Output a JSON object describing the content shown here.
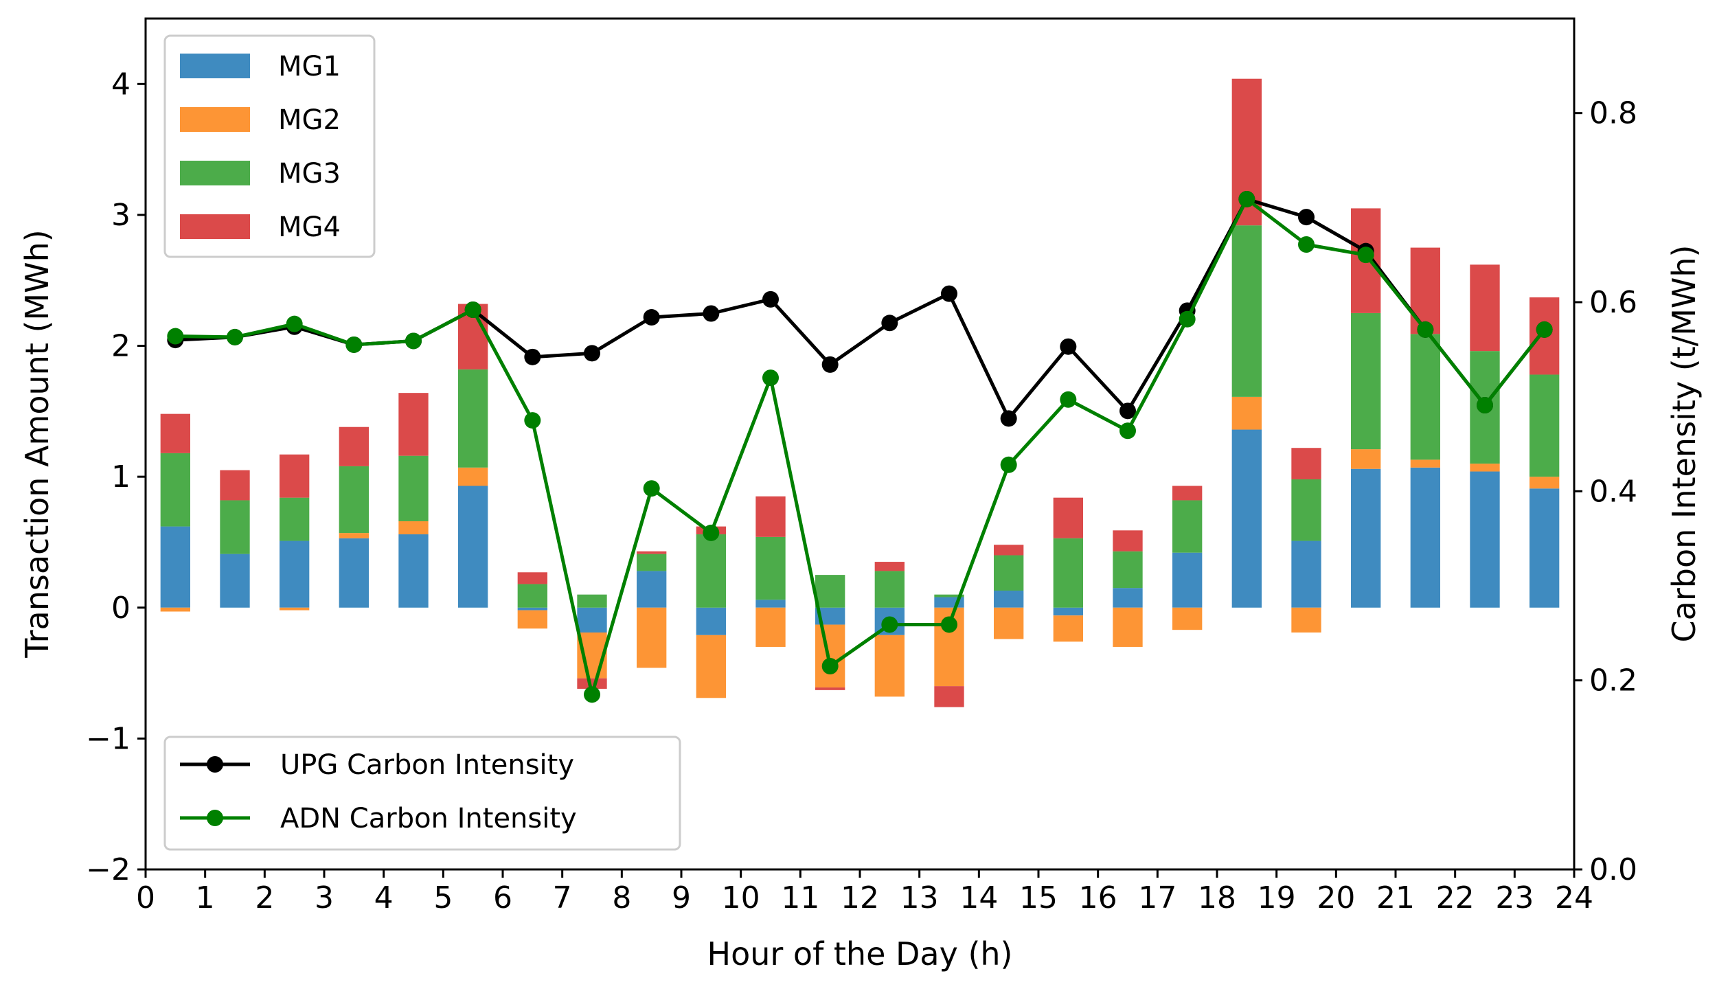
{
  "chart_data": {
    "type": "bar+line",
    "xlabel": "Hour of the Day (h)",
    "ylabel": "Transaction Amount (MWh)",
    "y2label": "Carbon Intensity (t/MWh)",
    "xlim": [
      0,
      24
    ],
    "ylim": [
      -2,
      4.5
    ],
    "y2lim": [
      0,
      0.9
    ],
    "xticks": [
      "0",
      "1",
      "2",
      "3",
      "4",
      "5",
      "6",
      "7",
      "8",
      "9",
      "10",
      "11",
      "12",
      "13",
      "14",
      "15",
      "16",
      "17",
      "18",
      "19",
      "20",
      "21",
      "22",
      "23",
      "24"
    ],
    "yticks": [
      "−2",
      "−1",
      "0",
      "1",
      "2",
      "3",
      "4"
    ],
    "y2ticks": [
      "0.0",
      "0.2",
      "0.4",
      "0.6",
      "0.8"
    ],
    "grid": false,
    "x": [
      0.5,
      1.5,
      2.5,
      3.5,
      4.5,
      5.5,
      6.5,
      7.5,
      8.5,
      9.5,
      10.5,
      11.5,
      12.5,
      13.5,
      14.5,
      15.5,
      16.5,
      17.5,
      18.5,
      19.5,
      20.5,
      21.5,
      22.5,
      23.5
    ],
    "bar_series": [
      {
        "name": "MG1",
        "color": "#3f8bc0",
        "values": [
          0.62,
          0.41,
          0.51,
          0.53,
          0.56,
          0.93,
          -0.02,
          -0.19,
          0.28,
          -0.21,
          0.06,
          -0.13,
          -0.21,
          0.08,
          0.13,
          -0.06,
          0.15,
          0.42,
          1.36,
          0.51,
          1.06,
          1.07,
          1.04,
          0.91
        ]
      },
      {
        "name": "MG2",
        "color": "#fd9535",
        "values": [
          -0.03,
          0.0,
          -0.02,
          0.04,
          0.1,
          0.14,
          -0.14,
          -0.35,
          -0.46,
          -0.48,
          -0.3,
          -0.48,
          -0.47,
          -0.6,
          -0.24,
          -0.2,
          -0.3,
          -0.17,
          0.25,
          -0.19,
          0.15,
          0.06,
          0.06,
          0.09
        ]
      },
      {
        "name": "MG3",
        "color": "#4cac4a",
        "values": [
          0.56,
          0.41,
          0.33,
          0.51,
          0.5,
          0.75,
          0.18,
          0.1,
          0.13,
          0.56,
          0.48,
          0.25,
          0.28,
          0.02,
          0.27,
          0.53,
          0.28,
          0.4,
          1.31,
          0.47,
          1.04,
          0.96,
          0.86,
          0.78
        ]
      },
      {
        "name": "MG4",
        "color": "#db4a4a",
        "values": [
          0.3,
          0.23,
          0.33,
          0.3,
          0.48,
          0.5,
          0.09,
          -0.08,
          0.02,
          0.06,
          0.31,
          -0.02,
          0.07,
          -0.16,
          0.08,
          0.31,
          0.16,
          0.11,
          1.12,
          0.24,
          0.8,
          0.66,
          0.66,
          0.59
        ]
      }
    ],
    "line_series": [
      {
        "name": "UPG Carbon Intensity",
        "color": "#000000",
        "values": [
          0.56,
          0.563,
          0.574,
          0.555,
          0.559,
          0.592,
          0.542,
          0.546,
          0.584,
          0.588,
          0.603,
          0.534,
          0.578,
          0.609,
          0.477,
          0.553,
          0.485,
          0.591,
          0.709,
          0.69,
          0.654,
          0.571,
          0.491,
          0.571
        ]
      },
      {
        "name": "ADN Carbon Intensity",
        "color": "#008000",
        "values": [
          0.564,
          0.563,
          0.577,
          0.555,
          0.559,
          0.592,
          0.475,
          0.185,
          0.403,
          0.356,
          0.52,
          0.215,
          0.259,
          0.259,
          0.428,
          0.497,
          0.464,
          0.582,
          0.709,
          0.661,
          0.65,
          0.571,
          0.491,
          0.571
        ]
      }
    ],
    "legend_bars_placement": "upper-left",
    "legend_lines_placement": "lower-left"
  }
}
